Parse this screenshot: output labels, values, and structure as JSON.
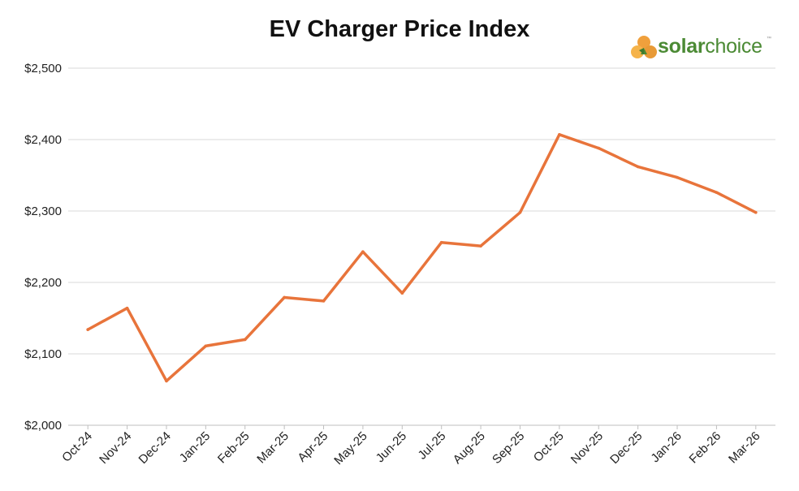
{
  "colors": {
    "line": "#e8743b",
    "grid": "#d9d9d9",
    "axis": "#bfbfbf",
    "logo_green": "#4b8a34",
    "logo_orange": "#f0a03c"
  },
  "logo": {
    "word1": "solar",
    "word2": "choice",
    "tm": "™",
    "icon": "sun-petals-icon"
  },
  "chart_data": {
    "type": "line",
    "title": "EV Charger Price Index",
    "xlabel": "",
    "ylabel": "",
    "ylim": [
      2000,
      2500
    ],
    "yticks": [
      2000,
      2100,
      2200,
      2300,
      2400,
      2500
    ],
    "ytick_labels": [
      "$2,000",
      "$2,100",
      "$2,200",
      "$2,300",
      "$2,400",
      "$2,500"
    ],
    "grid": true,
    "legend": "none",
    "categories": [
      "Oct-24",
      "Nov-24",
      "Dec-24",
      "Jan-25",
      "Feb-25",
      "Mar-25",
      "Apr-25",
      "May-25",
      "Jun-25",
      "Jul-25",
      "Aug-25",
      "Sep-25",
      "Oct-25",
      "Nov-25",
      "Dec-25",
      "Jan-26",
      "Feb-26",
      "Mar-26"
    ],
    "series": [
      {
        "name": "EV Charger Price Index",
        "values": [
          2134,
          2164,
          2062,
          2111,
          2120,
          2179,
          2174,
          2243,
          2185,
          2256,
          2251,
          2298,
          2407,
          2388,
          2362,
          2347,
          2326,
          2298
        ]
      }
    ]
  }
}
